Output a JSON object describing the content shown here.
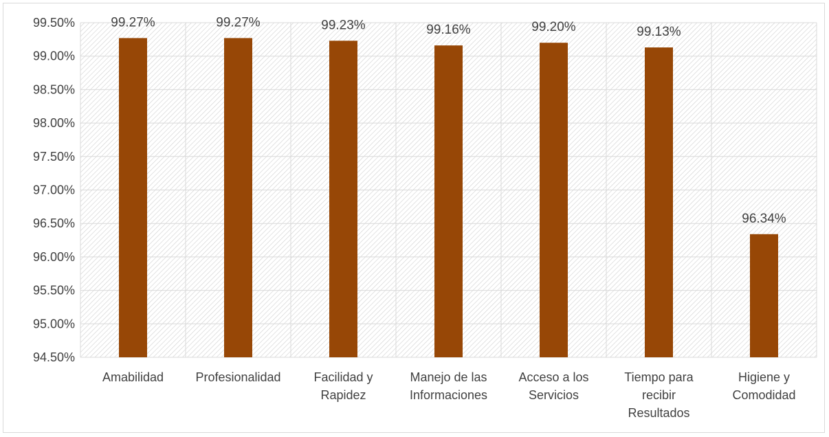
{
  "chart_data": {
    "type": "bar",
    "title": "",
    "xlabel": "",
    "ylabel": "",
    "ylim": [
      94.5,
      99.5
    ],
    "ytick_step": 0.5,
    "y_tick_labels": [
      "94.50%",
      "95.00%",
      "95.50%",
      "96.00%",
      "96.50%",
      "97.00%",
      "97.50%",
      "98.00%",
      "98.50%",
      "99.00%",
      "99.50%"
    ],
    "categories": [
      [
        "Amabilidad"
      ],
      [
        "Profesionalidad"
      ],
      [
        "Facilidad y",
        "Rapidez"
      ],
      [
        "Manejo de las",
        "Informaciones"
      ],
      [
        "Acceso a los",
        "Servicios"
      ],
      [
        "Tiempo para",
        "recibir",
        "Resultados"
      ],
      [
        "Higiene y",
        "Comodidad"
      ]
    ],
    "values": [
      99.27,
      99.27,
      99.23,
      99.16,
      99.2,
      99.13,
      96.34
    ],
    "data_labels": [
      "99.27%",
      "99.27%",
      "99.23%",
      "99.16%",
      "99.20%",
      "99.13%",
      "96.34%"
    ],
    "bar_color": "#974706",
    "grid": true,
    "plot_background": "hatched light gray",
    "legend": "none"
  }
}
